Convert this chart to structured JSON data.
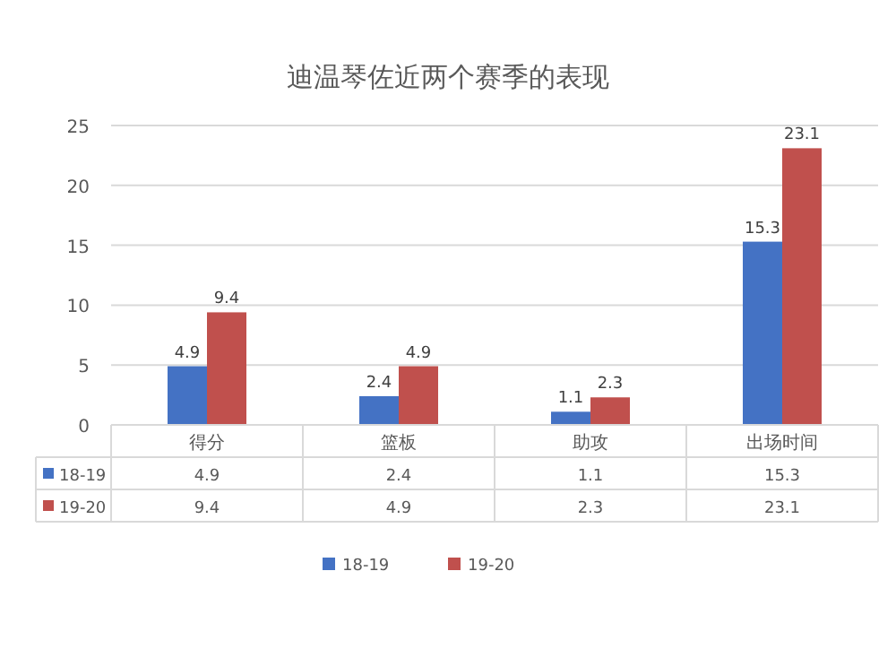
{
  "chart_data": {
    "type": "bar",
    "title": "迪温琴佐近两个赛季的表现",
    "categories": [
      "得分",
      "篮板",
      "助攻",
      "出场时间"
    ],
    "series": [
      {
        "name": "18-19",
        "color": "#4472c4",
        "values": [
          4.9,
          2.4,
          1.1,
          15.3
        ],
        "value_labels": [
          "4.9",
          "2.4",
          "1.1",
          "15.3"
        ]
      },
      {
        "name": "19-20",
        "color": "#c0504d",
        "values": [
          9.4,
          4.9,
          2.3,
          23.1
        ],
        "value_labels": [
          "9.4",
          "4.9",
          "2.3",
          "23.1"
        ]
      }
    ],
    "ylim": [
      0,
      25
    ],
    "yticks": [
      0,
      5,
      10,
      15,
      20,
      25
    ],
    "grid": "y",
    "legend": "bottom",
    "annotations": [
      "4.9",
      "2.4",
      "1.1",
      "15.3",
      "9.4",
      "4.9",
      "2.3",
      "23.1"
    ]
  }
}
